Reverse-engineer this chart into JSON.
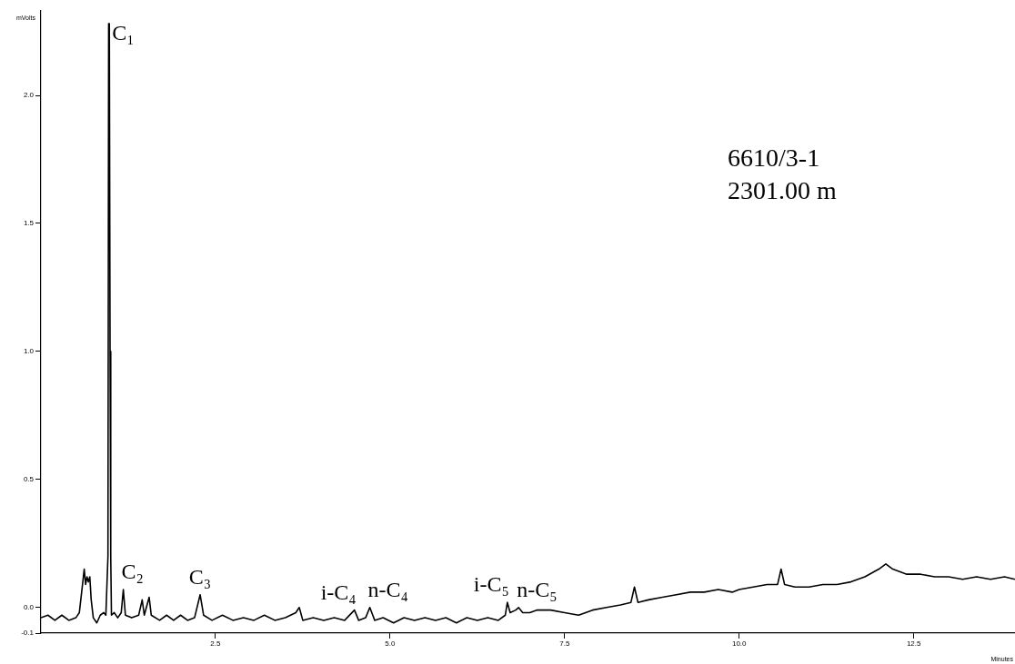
{
  "chart_data": {
    "type": "line",
    "xlabel": "Minutes",
    "ylabel": "mVolts",
    "xlim": [
      0,
      13.95
    ],
    "ylim": [
      -0.1,
      2.33
    ],
    "xticks": [
      {
        "value": 2.5,
        "label": "2.5"
      },
      {
        "value": 5,
        "label": "5.0"
      },
      {
        "value": 7.5,
        "label": "7.5"
      },
      {
        "value": 10,
        "label": "10.0"
      },
      {
        "value": 12.5,
        "label": "12.5"
      }
    ],
    "yticks": [
      {
        "value": -0.1,
        "label": "-0.1"
      },
      {
        "value": 0,
        "label": "0.0"
      },
      {
        "value": 0.5,
        "label": "0.5"
      },
      {
        "value": 1,
        "label": "1.0"
      },
      {
        "value": 1.5,
        "label": "1.5"
      },
      {
        "value": 2,
        "label": "2.0"
      }
    ],
    "grid": false,
    "legend": false,
    "marker": "none",
    "line_style": "solid",
    "x": [
      0,
      0.1,
      0.2,
      0.3,
      0.4,
      0.5,
      0.55,
      0.6,
      0.62,
      0.64,
      0.66,
      0.68,
      0.7,
      0.72,
      0.75,
      0.8,
      0.85,
      0.9,
      0.93,
      0.96,
      0.97,
      0.98,
      0.99,
      1.0,
      1.01,
      1.05,
      1.1,
      1.15,
      1.18,
      1.21,
      1.3,
      1.4,
      1.45,
      1.48,
      1.55,
      1.58,
      1.7,
      1.8,
      1.9,
      2.0,
      2.1,
      2.2,
      2.28,
      2.33,
      2.45,
      2.6,
      2.75,
      2.9,
      3.05,
      3.2,
      3.35,
      3.5,
      3.65,
      3.7,
      3.75,
      3.9,
      4.05,
      4.2,
      4.35,
      4.49,
      4.55,
      4.65,
      4.71,
      4.78,
      4.9,
      5.05,
      5.2,
      5.35,
      5.5,
      5.65,
      5.8,
      5.95,
      6.1,
      6.25,
      6.4,
      6.55,
      6.65,
      6.68,
      6.72,
      6.8,
      6.84,
      6.9,
      7.0,
      7.1,
      7.3,
      7.5,
      7.7,
      7.9,
      8.1,
      8.3,
      8.45,
      8.5,
      8.55,
      8.7,
      8.9,
      9.1,
      9.3,
      9.5,
      9.7,
      9.9,
      10.0,
      10.2,
      10.4,
      10.55,
      10.6,
      10.65,
      10.8,
      11.0,
      11.2,
      11.4,
      11.6,
      11.8,
      12.0,
      12.1,
      12.2,
      12.4,
      12.6,
      12.8,
      13.0,
      13.2,
      13.4,
      13.6,
      13.8,
      13.95
    ],
    "series": [
      {
        "color": "#000000",
        "values": [
          -0.04,
          -0.03,
          -0.05,
          -0.03,
          -0.05,
          -0.04,
          -0.02,
          0.1,
          0.15,
          0.09,
          0.12,
          0.1,
          0.12,
          0.03,
          -0.04,
          -0.06,
          -0.03,
          -0.02,
          -0.03,
          0.2,
          2.28,
          2.28,
          1.0,
          0.2,
          -0.03,
          -0.02,
          -0.04,
          -0.02,
          0.07,
          -0.03,
          -0.04,
          -0.03,
          0.03,
          -0.03,
          0.04,
          -0.03,
          -0.05,
          -0.03,
          -0.05,
          -0.03,
          -0.05,
          -0.04,
          0.05,
          -0.03,
          -0.05,
          -0.03,
          -0.05,
          -0.04,
          -0.05,
          -0.03,
          -0.05,
          -0.04,
          -0.02,
          0.0,
          -0.05,
          -0.04,
          -0.05,
          -0.04,
          -0.05,
          -0.01,
          -0.05,
          -0.04,
          0.0,
          -0.05,
          -0.04,
          -0.06,
          -0.04,
          -0.05,
          -0.04,
          -0.05,
          -0.04,
          -0.06,
          -0.04,
          -0.05,
          -0.04,
          -0.05,
          -0.03,
          0.02,
          -0.02,
          -0.01,
          0.0,
          -0.02,
          -0.02,
          -0.01,
          -0.01,
          -0.02,
          -0.03,
          -0.01,
          0.0,
          0.01,
          0.02,
          0.08,
          0.02,
          0.03,
          0.04,
          0.05,
          0.06,
          0.06,
          0.07,
          0.06,
          0.07,
          0.08,
          0.09,
          0.09,
          0.15,
          0.09,
          0.08,
          0.08,
          0.09,
          0.09,
          0.1,
          0.12,
          0.15,
          0.17,
          0.15,
          0.13,
          0.13,
          0.12,
          0.12,
          0.11,
          0.12,
          0.11,
          0.12,
          0.11
        ]
      }
    ],
    "annotations": [
      {
        "text": "C₁",
        "x": 0.98,
        "y": 2.28
      },
      {
        "text": "C₂",
        "x": 1.18,
        "y": 0.07
      },
      {
        "text": "C₃",
        "x": 2.28,
        "y": 0.05
      },
      {
        "text": "i-C₄",
        "x": 4.49,
        "y": -0.01
      },
      {
        "text": "n-C₄",
        "x": 4.71,
        "y": 0.0
      },
      {
        "text": "i-C₅",
        "x": 6.68,
        "y": 0.02
      },
      {
        "text": "n-C₅",
        "x": 6.84,
        "y": 0.0
      },
      "6610/3-1",
      "2301.00 m"
    ]
  }
}
